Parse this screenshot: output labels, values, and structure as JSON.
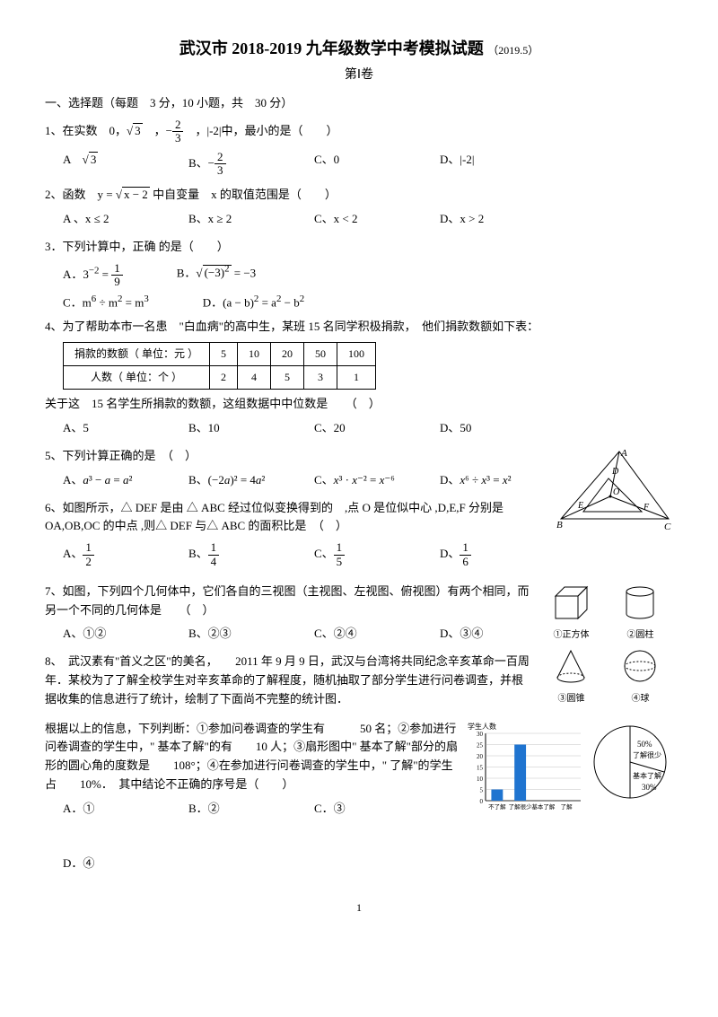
{
  "header": {
    "city": "武汉市",
    "year_range": "2018-2019",
    "title_rest": "九年级数学中考模拟试题",
    "date": "（2019.5）",
    "part_label": "第Ⅰ卷"
  },
  "section1": {
    "heading": "一、选择题（每题　3 分，10 小题，共　30 分）",
    "q1": {
      "text": "1、在实数　0，√3　，−2/3　，|-2|中，最小的是（　　）",
      "options": {
        "A": "A　√3",
        "B": "B、−2/3",
        "C": "C、0",
        "D": "D、|-2|"
      }
    },
    "q2": {
      "text": "2、函数　y = √(x − 2) 中自变量　x 的取值范围是（　　）",
      "options": {
        "A": "A 、x ≤ 2",
        "B": "B、x ≥ 2",
        "C": "C、x < 2",
        "D": "D、x > 2"
      }
    },
    "q3": {
      "text": "3．下列计算中，正确 的是（　　）",
      "options": {
        "A": "A．3⁻² = 1/9",
        "B": "B．√(−3)² = −3",
        "C": "C．m⁶ ÷ m² = m³",
        "D": "D．(a − b)² = a² − b²"
      }
    },
    "q4": {
      "stem": "4、为了帮助本市一名患　\"白血病\"的高中生，某班 15 名同学积极捐款，　他们捐款数额如下表：",
      "table": {
        "row1": [
          "捐款的数额（ 单位：元 ）",
          "5",
          "10",
          "20",
          "50",
          "100"
        ],
        "row2": [
          "人数（ 单位：个 ）",
          "2",
          "4",
          "5",
          "3",
          "1"
        ]
      },
      "after": "关于这　15 名学生所捐款的数额，这组数据中中位数是　　（　）",
      "options": {
        "A": "A、5",
        "B": "B、10",
        "C": "C、20",
        "D": "D、50"
      }
    },
    "q5": {
      "text": "5、下列计算正确的是　（　）",
      "options": {
        "A": "A、a³ − a = a²",
        "B": "B、(−2a)² = 4a²",
        "C": "C、x³ · x⁻² = x⁻⁶",
        "D": "D、x⁶ ÷ x³ = x²"
      }
    },
    "q6": {
      "text": "6、如图所示，△ DEF 是由 △ ABC 经过位似变换得到的　,点 O 是位似中心 ,D,E,F 分别是 OA,OB,OC 的中点 ,则△ DEF 与△ ABC 的面积比是　（　）",
      "options": {
        "A": "A、1/2",
        "B": "B、1/4",
        "C": "C、1/5",
        "D": "D、1/6"
      },
      "triangle": {
        "A": "A",
        "B": "B",
        "C": "C",
        "D": "D",
        "E": "E",
        "F": "F",
        "O": "O"
      }
    },
    "q7": {
      "text": "7、如图，下列四个几何体中，它们各自的三视图（主视图、左视图、俯视图）有两个相同，而另一个不同的几何体是　　（　）",
      "options": {
        "A": "A、①②",
        "B": "B、②③",
        "C": "C、②④",
        "D": "D、③④"
      },
      "shapes": {
        "s1": "①正方体",
        "s2": "②圆柱",
        "s3": "③圆锥",
        "s4": "④球"
      }
    },
    "q8": {
      "text1": "8、　武汉素有\"首义之区\"的美名，　　2011 年 9 月 9 日，武汉与台湾将共同纪念辛亥革命一百周年．某校为了了解全校学生对辛亥革命的了解程度，随机抽取了部分学生进行问卷调查，并根据收集的信息进行了统计，绘制了下面尚不完整的统计图．",
      "text2": "根据以上的信息，下列判断：①参加问卷调查的学生有　　　50 名；②参加进行问卷调查的学生中，\" 基本了解\"的有　　10 人；③扇形图中\" 基本了解\"部分的扇形的圆心角的度数是　　108°；④在参加进行问卷调查的学生中，\" 了解\"的学生占　　10%．　其中结论不正确的序号是（　　）",
      "options": {
        "A": "A．①",
        "B": "B．②",
        "C": "C．③",
        "D": "D．④"
      },
      "bar_chart": {
        "categories": [
          "不了解",
          "了解很少",
          "基本了解",
          "了解"
        ],
        "values": [
          5,
          25,
          0,
          0
        ],
        "ylabel": "学生人数",
        "ymax": 30,
        "ytick_step": 5,
        "bar_color": "#1f74d0",
        "background_color": "#ffffff",
        "grid_color": "#999999"
      },
      "pie": {
        "slices": [
          {
            "label": "50%",
            "sublabel": "了解很少",
            "pct": 50,
            "color": "#ffffff"
          },
          {
            "label": "基本了解",
            "pct": 30,
            "color": "#ffffff"
          },
          {
            "label": "30%",
            "pct": 30,
            "color": "#ffffff"
          }
        ],
        "stroke": "#000000"
      }
    }
  },
  "pagenum": "1"
}
